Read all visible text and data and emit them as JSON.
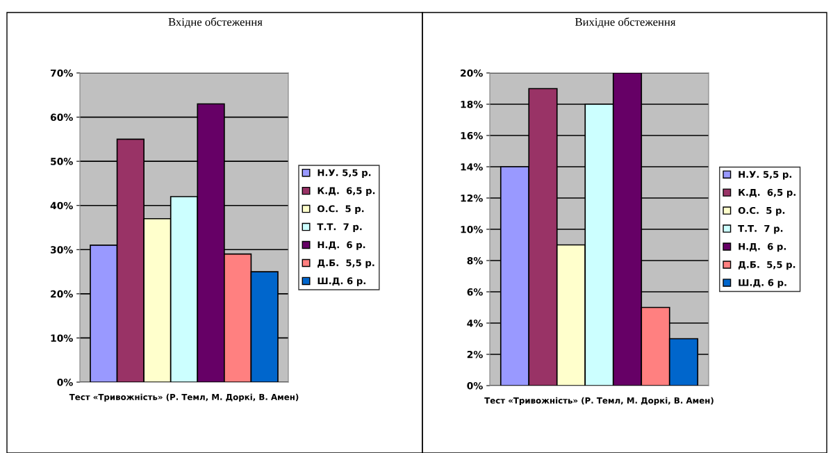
{
  "chart_data": [
    {
      "type": "bar",
      "title": "Вхідне обстеження",
      "categories": [
        "Тест «Тривожність» (Р. Темл, М. Доркі, В. Амен)"
      ],
      "series": [
        {
          "name": "Н.У. 5,5 р.",
          "color": "#9999ff",
          "values": [
            31
          ]
        },
        {
          "name": "К.Д.  6,5 р.",
          "color": "#993366",
          "values": [
            55
          ]
        },
        {
          "name": "О.С.  5 р.",
          "color": "#ffffcc",
          "values": [
            37
          ]
        },
        {
          "name": "Т.Т.  7 р.",
          "color": "#ccffff",
          "values": [
            42
          ]
        },
        {
          "name": "Н.Д.  6 р.",
          "color": "#660066",
          "values": [
            63
          ]
        },
        {
          "name": "Д.Б.  5,5 р.",
          "color": "#ff8080",
          "values": [
            29
          ]
        },
        {
          "name": "Ш.Д. 6 р.",
          "color": "#0066cc",
          "values": [
            25
          ]
        }
      ],
      "ylim": [
        0,
        70
      ],
      "yticks": [
        {
          "value": 0,
          "label": "0%"
        },
        {
          "value": 10,
          "label": "10%"
        },
        {
          "value": 20,
          "label": "20%"
        },
        {
          "value": 30,
          "label": "30%"
        },
        {
          "value": 40,
          "label": "40%"
        },
        {
          "value": 50,
          "label": "50%"
        },
        {
          "value": 60,
          "label": "60%"
        },
        {
          "value": 70,
          "label": "70%"
        }
      ],
      "grid": "y",
      "legend": "right"
    },
    {
      "type": "bar",
      "title": "Вихідне обстеження",
      "categories": [
        "Тест «Тривожність» (Р. Темл, М. Доркі, В. Амен)"
      ],
      "series": [
        {
          "name": "Н.У. 5,5 р.",
          "color": "#9999ff",
          "values": [
            14
          ]
        },
        {
          "name": "К.Д.  6,5 р.",
          "color": "#993366",
          "values": [
            19
          ]
        },
        {
          "name": "О.С.  5 р.",
          "color": "#ffffcc",
          "values": [
            9
          ]
        },
        {
          "name": "Т.Т.  7 р.",
          "color": "#ccffff",
          "values": [
            18
          ]
        },
        {
          "name": "Н.Д.  6 р.",
          "color": "#660066",
          "values": [
            20
          ]
        },
        {
          "name": "Д.Б.  5,5 р.",
          "color": "#ff8080",
          "values": [
            5
          ]
        },
        {
          "name": "Ш.Д. 6 р.",
          "color": "#0066cc",
          "values": [
            3
          ]
        }
      ],
      "ylim": [
        0,
        20
      ],
      "yticks": [
        {
          "value": 0,
          "label": "0%"
        },
        {
          "value": 2,
          "label": "2%"
        },
        {
          "value": 4,
          "label": "4%"
        },
        {
          "value": 6,
          "label": "6%"
        },
        {
          "value": 8,
          "label": "8%"
        },
        {
          "value": 10,
          "label": "10%"
        },
        {
          "value": 12,
          "label": "12%"
        },
        {
          "value": 14,
          "label": "14%"
        },
        {
          "value": 16,
          "label": "16%"
        },
        {
          "value": 18,
          "label": "18%"
        },
        {
          "value": 20,
          "label": "20%"
        }
      ],
      "grid": "y",
      "legend": "right"
    }
  ]
}
